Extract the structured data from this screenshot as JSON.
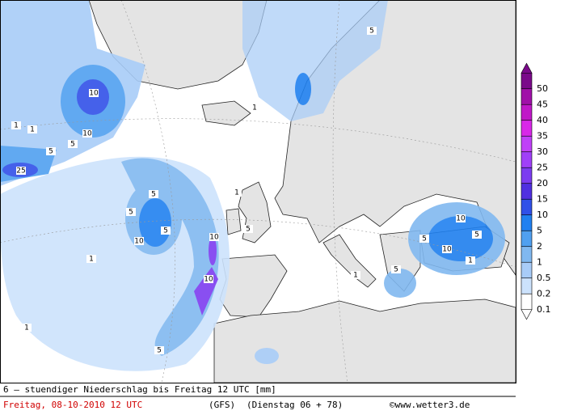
{
  "map": {
    "caption": "6 – stuendiger Niederschlag bis Freitag 12 UTC [mm]",
    "run": "Freitag, 08-10-2010  12 UTC",
    "model": "(GFS)",
    "forecast": "(Dienstag 06 + 78)",
    "credit": "©www.wetter3.de",
    "legend": [
      {
        "label": "50",
        "color": "#7a0a8a"
      },
      {
        "label": "45",
        "color": "#a010a8"
      },
      {
        "label": "40",
        "color": "#c018c8"
      },
      {
        "label": "35",
        "color": "#d828e8"
      },
      {
        "label": "30",
        "color": "#c040f8"
      },
      {
        "label": "25",
        "color": "#a040f8"
      },
      {
        "label": "20",
        "color": "#7c3cf0"
      },
      {
        "label": "15",
        "color": "#5030e0"
      },
      {
        "label": "10",
        "color": "#3050e8"
      },
      {
        "label": "5",
        "color": "#2080f0"
      },
      {
        "label": "2",
        "color": "#50a0f0"
      },
      {
        "label": "1",
        "color": "#80b8f0"
      },
      {
        "label": "0.5",
        "color": "#a8ccf8"
      },
      {
        "label": "0.2",
        "color": "#cce2fc"
      },
      {
        "label": "0.1",
        "color": "#ffffff"
      }
    ],
    "contour_labels": [
      "10",
      "10",
      "5",
      "5",
      "1",
      "1",
      "25",
      "5",
      "5",
      "10",
      "5",
      "10",
      "10",
      "5",
      "1",
      "1",
      "5",
      "10",
      "10",
      "5",
      "5",
      "1",
      "5",
      "1",
      "5",
      "1",
      "1"
    ]
  }
}
